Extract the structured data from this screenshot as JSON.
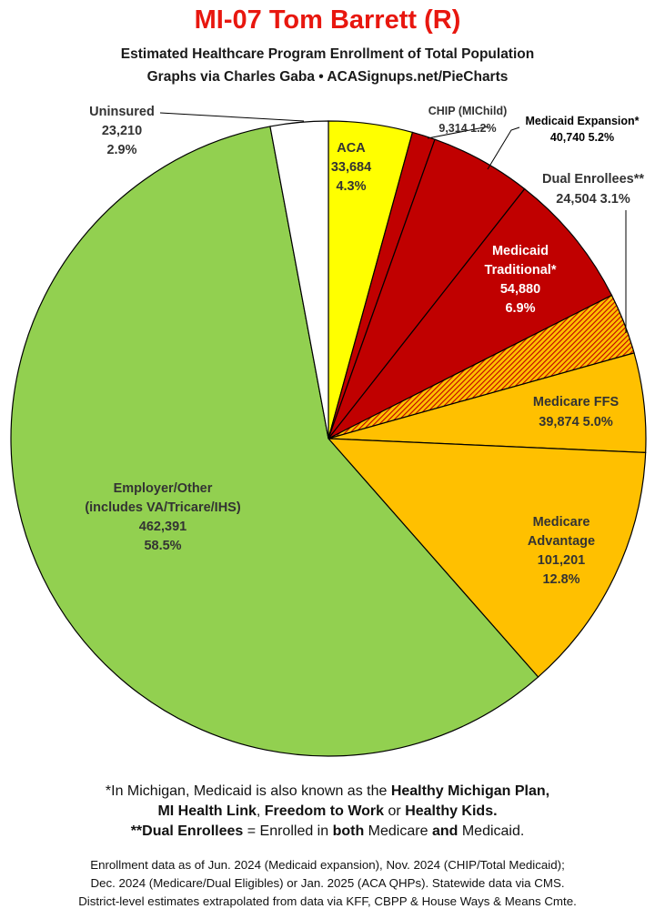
{
  "title": "MI-07 Tom Barrett (R)",
  "subtitle1": "Estimated Healthcare Program Enrollment of Total Population",
  "subtitle2": "Graphs via Charles Gaba  •  ACASignups.net/PieCharts",
  "chart_data": {
    "type": "pie",
    "start_angle_deg": 0,
    "direction": "clockwise",
    "slices": [
      {
        "key": "aca",
        "name": "ACA",
        "value": 33684,
        "pct": "4.3%",
        "color": "#ffff00",
        "label_lines": [
          "ACA",
          "33,684",
          "4.3%"
        ],
        "label_color": "#333333"
      },
      {
        "key": "chip",
        "name": "CHIP (MIChild)",
        "value": 9314,
        "pct": "1.2%",
        "color": "#c00000",
        "label_lines": [
          "CHIP (MIChild)",
          "9,314 1.2%"
        ],
        "label_color": "#333333"
      },
      {
        "key": "medicaid_expansion",
        "name": "Medicaid Expansion*",
        "value": 40740,
        "pct": "5.2%",
        "color": "#c00000",
        "label_lines": [
          "Medicaid Expansion*",
          "40,740 5.2%"
        ],
        "label_color": "#000000"
      },
      {
        "key": "medicaid_traditional",
        "name": "Medicaid Traditional*",
        "value": 54880,
        "pct": "6.9%",
        "color": "#c00000",
        "label_lines": [
          "Medicaid",
          "Traditional*",
          "54,880",
          "6.9%"
        ],
        "label_color": "#ffffff"
      },
      {
        "key": "dual",
        "name": "Dual Enrollees**",
        "value": 24504,
        "pct": "3.1%",
        "color": "#ffc000",
        "hatch": true,
        "label_lines": [
          "Dual Enrollees**",
          "24,504 3.1%"
        ],
        "label_color": "#333333"
      },
      {
        "key": "medicare_ffs",
        "name": "Medicare FFS",
        "value": 39874,
        "pct": "5.0%",
        "color": "#ffc000",
        "label_lines": [
          "Medicare FFS",
          "39,874 5.0%"
        ],
        "label_color": "#333333"
      },
      {
        "key": "medicare_adv",
        "name": "Medicare Advantage",
        "value": 101201,
        "pct": "12.8%",
        "color": "#ffc000",
        "label_lines": [
          "Medicare",
          "Advantage",
          "101,201",
          "12.8%"
        ],
        "label_color": "#333333"
      },
      {
        "key": "employer",
        "name": "Employer/Other (includes VA/Tricare/IHS)",
        "value": 462391,
        "pct": "58.5%",
        "color": "#92d050",
        "label_lines": [
          "Employer/Other",
          "(includes VA/Tricare/IHS)",
          "462,391",
          "58.5%"
        ],
        "label_color": "#333333"
      },
      {
        "key": "uninsured",
        "name": "Uninsured",
        "value": 23210,
        "pct": "2.9%",
        "color": "#ffffff",
        "label_lines": [
          "Uninsured",
          "23,210",
          "2.9%"
        ],
        "label_color": "#333333"
      }
    ]
  },
  "footnote1_pre": "*In Michigan, Medicaid is also known as the ",
  "footnote1_b1": "Healthy Michigan Plan,",
  "footnote2_b1": "MI Health Link",
  "footnote2_t1": ", ",
  "footnote2_b2": "Freedom to Work",
  "footnote2_t2": " or ",
  "footnote2_b3": "Healthy Kids.",
  "footnote3_b1": "**Dual Enrollees",
  "footnote3_t1": " = Enrolled in ",
  "footnote3_b2": "both",
  "footnote3_t2": " Medicare ",
  "footnote3_b3": "and",
  "footnote3_t3": " Medicaid.",
  "source1": "Enrollment data as of Jun. 2024 (Medicaid expansion), Nov. 2024 (CHIP/Total Medicaid);",
  "source2": "Dec. 2024 (Medicare/Dual Eligibles) or Jan. 2025 (ACA QHPs). Statewide data via CMS.",
  "source3": "District-level estimates extrapolated from data via KFF, CBPP & House Ways & Means Cmte."
}
